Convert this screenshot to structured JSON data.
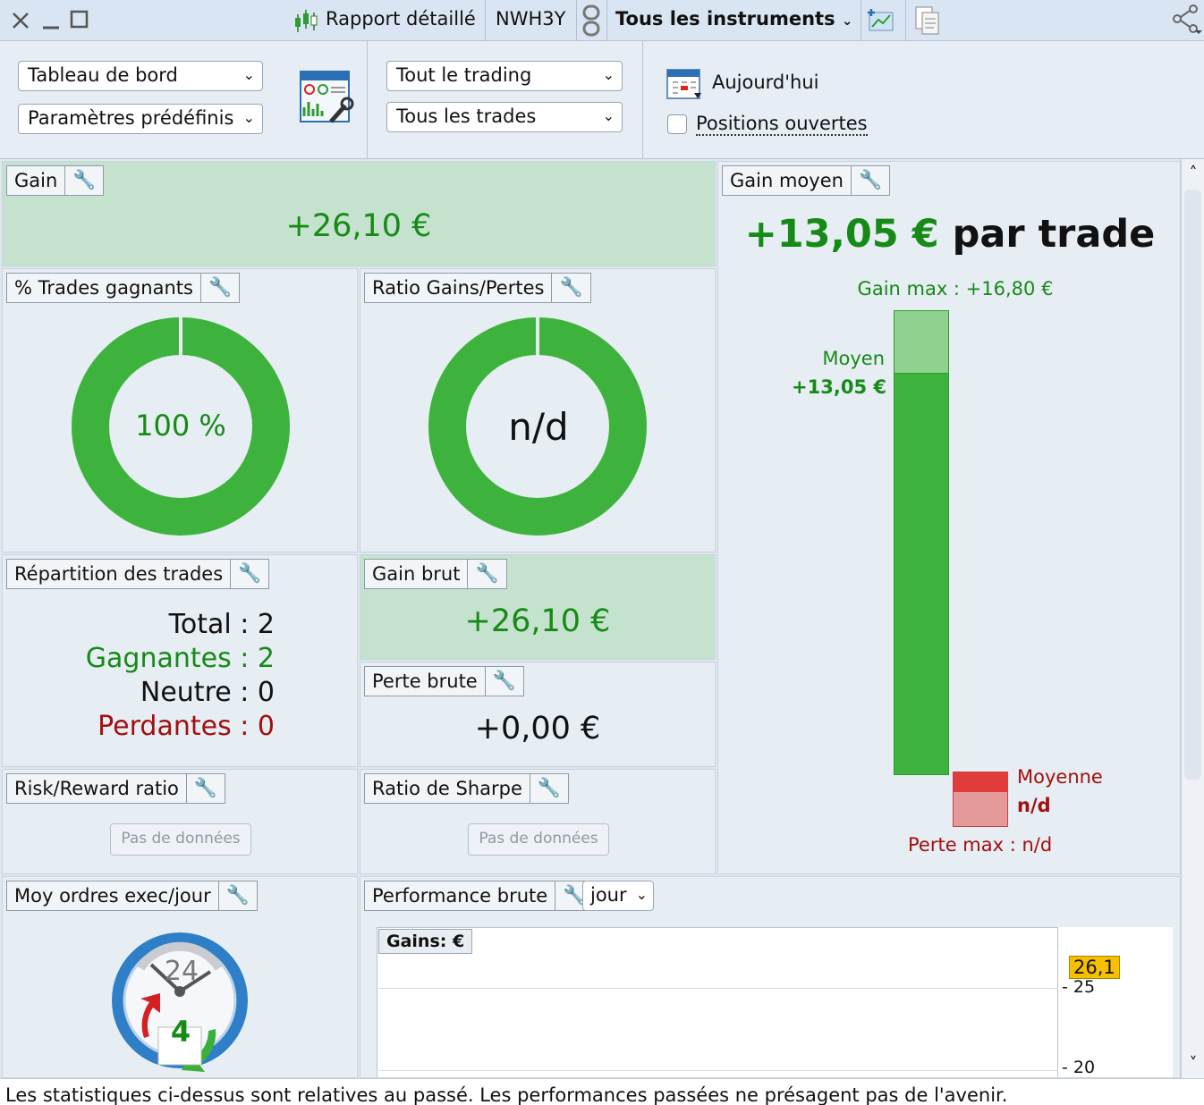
{
  "titlebar": {
    "report": "Rapport détaillé",
    "account": "NWH3Y",
    "instruments": "Tous les instruments"
  },
  "toolbar": {
    "select_dashboard": "Tableau de bord",
    "select_presets": "Paramètres prédéfinis",
    "select_trading": "Tout le trading",
    "select_trades": "Tous les trades",
    "today": "Aujourd'hui",
    "open_positions": "Positions ouvertes"
  },
  "panels": {
    "gain": {
      "title": "Gain",
      "value": "+26,10 €"
    },
    "win_pct": {
      "title": "% Trades gagnants",
      "value": "100 %"
    },
    "ratio": {
      "title": "Ratio Gains/Pertes",
      "value": "n/d"
    },
    "avg_gain": {
      "title": "Gain moyen",
      "value": "+13,05 €",
      "suffix": "par trade",
      "max_gain": "Gain max : +16,80 €",
      "avg_label": "Moyen",
      "avg_value": "+13,05 €",
      "loss_avg_label": "Moyenne",
      "loss_avg_value": "n/d",
      "max_loss": "Perte max : n/d"
    },
    "distribution": {
      "title": "Répartition des trades",
      "rows": [
        {
          "label": "Total",
          "sep": ":",
          "value": "2"
        },
        {
          "label": "Gagnantes",
          "sep": ":",
          "value": "2"
        },
        {
          "label": "Neutre",
          "sep": ":",
          "value": "0"
        },
        {
          "label": "Perdantes",
          "sep": ":",
          "value": "0"
        }
      ]
    },
    "gross_gain": {
      "title": "Gain brut",
      "value": "+26,10 €"
    },
    "gross_loss": {
      "title": "Perte brute",
      "value": "+0,00 €"
    },
    "risk_reward": {
      "title": "Risk/Reward ratio",
      "nodata": "Pas de données"
    },
    "sharpe": {
      "title": "Ratio de Sharpe",
      "nodata": "Pas de données"
    },
    "orders": {
      "title": "Moy ordres exec/jour",
      "clock_top": "24",
      "clock_center": "4"
    },
    "performance": {
      "title": "Performance brute",
      "period": "jour",
      "chart_label": "Gains: €"
    }
  },
  "chart_data": {
    "type": "line",
    "title": "Gains: €",
    "y_ticks": [
      "25",
      "20"
    ],
    "last_value": "26,1",
    "x": [],
    "series": []
  },
  "footer": "Les statistiques ci-dessus sont relatives au passé. Les performances passées ne présagent pas de l'avenir.",
  "colors": {
    "green": "#3db33d",
    "green_light": "#8fd28f",
    "red": "#e03c3c",
    "red_light": "#e59a9a",
    "value_green": "#168a16",
    "value_red": "#a30f0f"
  }
}
